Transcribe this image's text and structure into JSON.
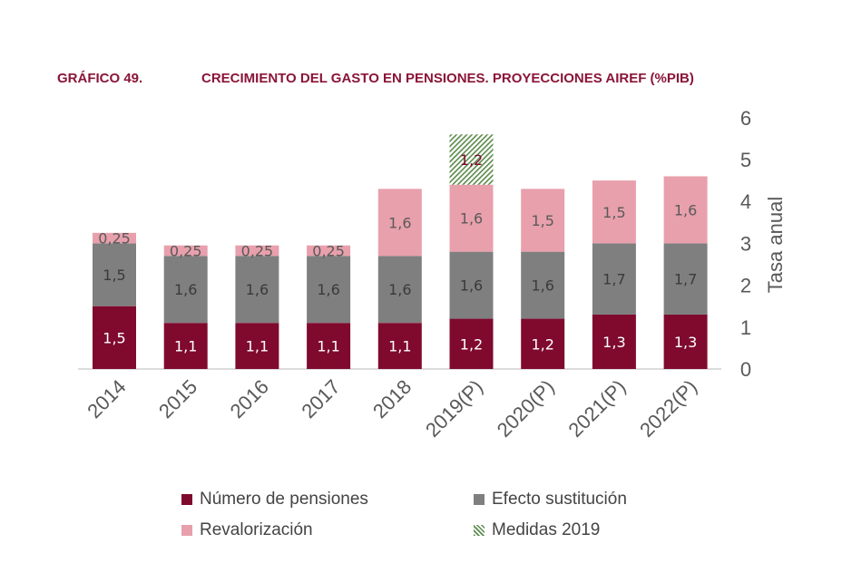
{
  "header": {
    "label": "GRÁFICO 49.",
    "title": "CRECIMIENTO DEL GASTO EN PENSIONES. PROYECCIONES AIREF (%PIB)"
  },
  "chart_data": {
    "type": "bar",
    "stacked": true,
    "categories": [
      "2014",
      "2015",
      "2016",
      "2017",
      "2018",
      "2019(P)",
      "2020(P)",
      "2021(P)",
      "2022(P)"
    ],
    "series": [
      {
        "name": "Número de pensiones",
        "color": "#7f0a2e",
        "values": [
          1.5,
          1.1,
          1.1,
          1.1,
          1.1,
          1.2,
          1.2,
          1.3,
          1.3
        ],
        "labels": [
          "1,5",
          "1,1",
          "1,1",
          "1,1",
          "1,1",
          "1,2",
          "1,2",
          "1,3",
          "1,3"
        ]
      },
      {
        "name": "Efecto sustitución",
        "color": "#7f7f7f",
        "values": [
          1.5,
          1.6,
          1.6,
          1.6,
          1.6,
          1.6,
          1.6,
          1.7,
          1.7
        ],
        "labels": [
          "1,5",
          "1,6",
          "1,6",
          "1,6",
          "1,6",
          "1,6",
          "1,6",
          "1,7",
          "1,7"
        ]
      },
      {
        "name": "Revalorización",
        "color": "#e8a0ac",
        "values": [
          0.25,
          0.25,
          0.25,
          0.25,
          1.6,
          1.6,
          1.5,
          1.5,
          1.6
        ],
        "labels": [
          "0,25",
          "0,25",
          "0,25",
          "0,25",
          "1,6",
          "1,6",
          "1,5",
          "1,5",
          "1,6"
        ]
      },
      {
        "name": "Medidas 2019",
        "color": "#5a8a4a",
        "pattern": "hatched",
        "values": [
          0,
          0,
          0,
          0,
          0,
          1.2,
          0,
          0,
          0
        ],
        "labels": [
          "",
          "",
          "",
          "",
          "",
          "1,2",
          "",
          "",
          ""
        ]
      }
    ],
    "ylabel": "Tasa anual",
    "ylim": [
      0,
      6
    ],
    "yticks": [
      "0",
      "1",
      "2",
      "3",
      "4",
      "5",
      "6"
    ],
    "y_axis_side": "right",
    "grid": false,
    "legend_position": "bottom"
  }
}
